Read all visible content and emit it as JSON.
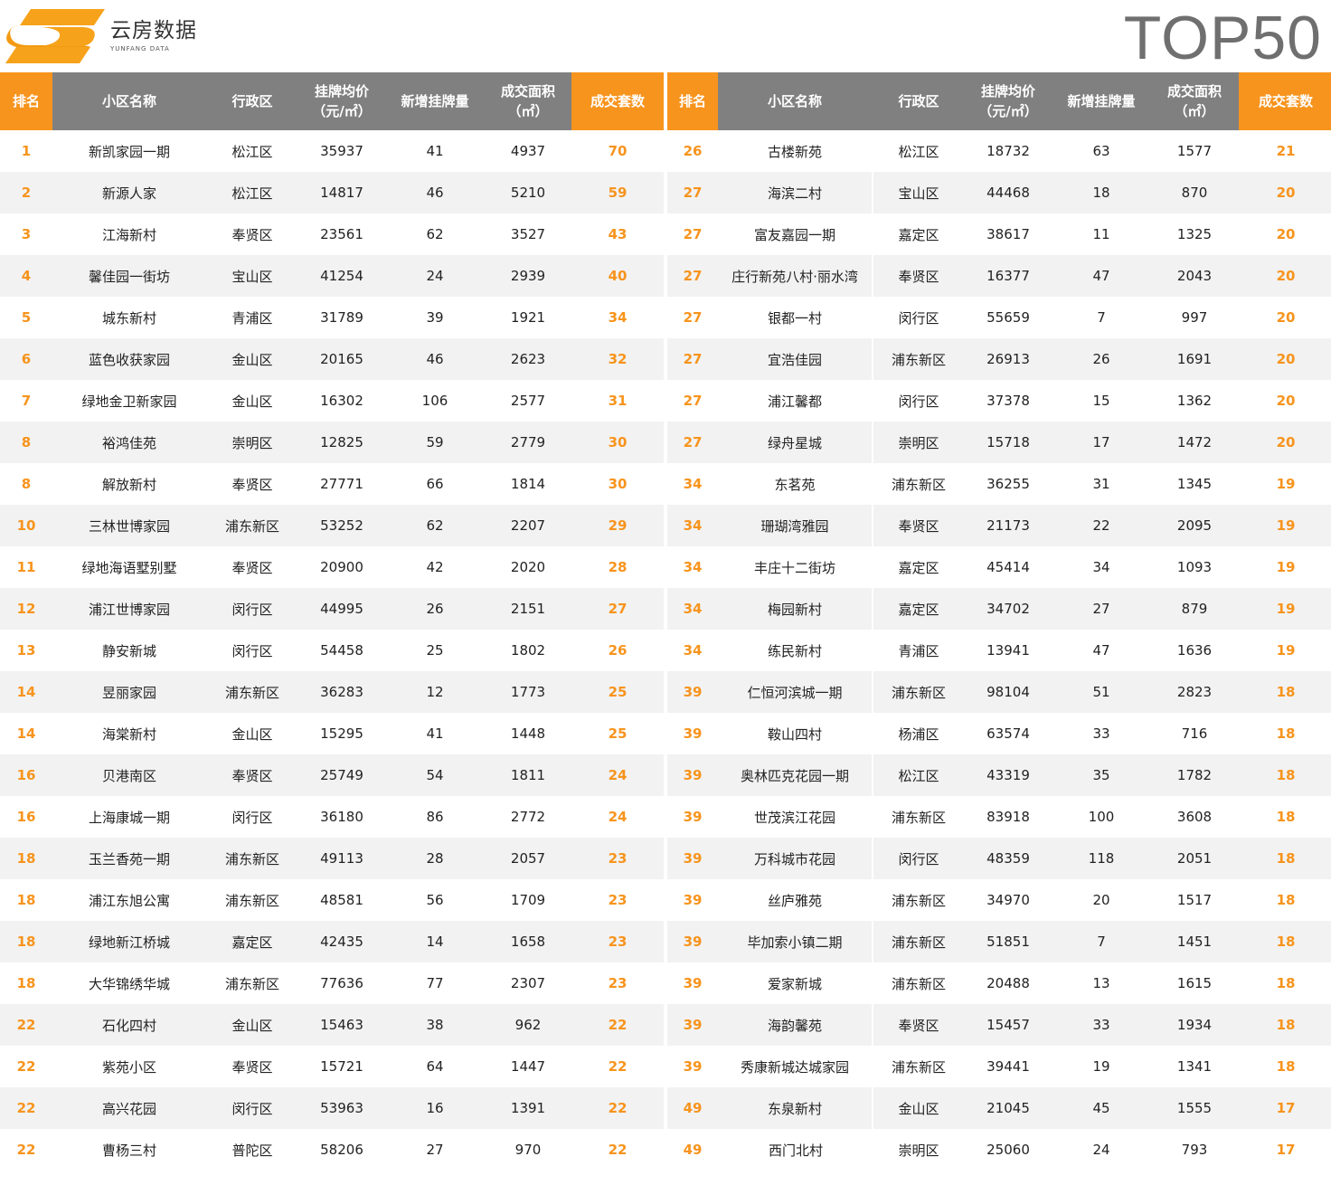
{
  "brand": {
    "name_cn": "云房数据",
    "name_en": "YUNFANG DATA",
    "accent_color": "#f7941d",
    "header_gray": "#808080"
  },
  "title": "TOP50",
  "columns": {
    "rank": "排名",
    "name": "小区名称",
    "district": "行政区",
    "price_line1": "挂牌均价",
    "price_line2": "（元/㎡）",
    "new_listings": "新增挂牌量",
    "area_line1": "成交面积",
    "area_line2": "（㎡）",
    "deals": "成交套数"
  },
  "rows": [
    [
      "1",
      "新凯家园一期",
      "松江区",
      "35937",
      "41",
      "4937",
      "70"
    ],
    [
      "2",
      "新源人家",
      "松江区",
      "14817",
      "46",
      "5210",
      "59"
    ],
    [
      "3",
      "江海新村",
      "奉贤区",
      "23561",
      "62",
      "3527",
      "43"
    ],
    [
      "4",
      "馨佳园一街坊",
      "宝山区",
      "41254",
      "24",
      "2939",
      "40"
    ],
    [
      "5",
      "城东新村",
      "青浦区",
      "31789",
      "39",
      "1921",
      "34"
    ],
    [
      "6",
      "蓝色收获家园",
      "金山区",
      "20165",
      "46",
      "2623",
      "32"
    ],
    [
      "7",
      "绿地金卫新家园",
      "金山区",
      "16302",
      "106",
      "2577",
      "31"
    ],
    [
      "8",
      "裕鸿佳苑",
      "崇明区",
      "12825",
      "59",
      "2779",
      "30"
    ],
    [
      "8",
      "解放新村",
      "奉贤区",
      "27771",
      "66",
      "1814",
      "30"
    ],
    [
      "10",
      "三林世博家园",
      "浦东新区",
      "53252",
      "62",
      "2207",
      "29"
    ],
    [
      "11",
      "绿地海语墅别墅",
      "奉贤区",
      "20900",
      "42",
      "2020",
      "28"
    ],
    [
      "12",
      "浦江世博家园",
      "闵行区",
      "44995",
      "26",
      "2151",
      "27"
    ],
    [
      "13",
      "静安新城",
      "闵行区",
      "54458",
      "25",
      "1802",
      "26"
    ],
    [
      "14",
      "昱丽家园",
      "浦东新区",
      "36283",
      "12",
      "1773",
      "25"
    ],
    [
      "14",
      "海棠新村",
      "金山区",
      "15295",
      "41",
      "1448",
      "25"
    ],
    [
      "16",
      "贝港南区",
      "奉贤区",
      "25749",
      "54",
      "1811",
      "24"
    ],
    [
      "16",
      "上海康城一期",
      "闵行区",
      "36180",
      "86",
      "2772",
      "24"
    ],
    [
      "18",
      "玉兰香苑一期",
      "浦东新区",
      "49113",
      "28",
      "2057",
      "23"
    ],
    [
      "18",
      "浦江东旭公寓",
      "浦东新区",
      "48581",
      "56",
      "1709",
      "23"
    ],
    [
      "18",
      "绿地新江桥城",
      "嘉定区",
      "42435",
      "14",
      "1658",
      "23"
    ],
    [
      "18",
      "大华锦绣华城",
      "浦东新区",
      "77636",
      "77",
      "2307",
      "23"
    ],
    [
      "22",
      "石化四村",
      "金山区",
      "15463",
      "38",
      "962",
      "22"
    ],
    [
      "22",
      "紫苑小区",
      "奉贤区",
      "15721",
      "64",
      "1447",
      "22"
    ],
    [
      "22",
      "高兴花园",
      "闵行区",
      "53963",
      "16",
      "1391",
      "22"
    ],
    [
      "22",
      "曹杨三村",
      "普陀区",
      "58206",
      "27",
      "970",
      "22"
    ],
    [
      "26",
      "古楼新苑",
      "松江区",
      "18732",
      "63",
      "1577",
      "21"
    ],
    [
      "27",
      "海滨二村",
      "宝山区",
      "44468",
      "18",
      "870",
      "20"
    ],
    [
      "27",
      "富友嘉园一期",
      "嘉定区",
      "38617",
      "11",
      "1325",
      "20"
    ],
    [
      "27",
      "庄行新苑八村·丽水湾",
      "奉贤区",
      "16377",
      "47",
      "2043",
      "20"
    ],
    [
      "27",
      "银都一村",
      "闵行区",
      "55659",
      "7",
      "997",
      "20"
    ],
    [
      "27",
      "宜浩佳园",
      "浦东新区",
      "26913",
      "26",
      "1691",
      "20"
    ],
    [
      "27",
      "浦江馨都",
      "闵行区",
      "37378",
      "15",
      "1362",
      "20"
    ],
    [
      "27",
      "绿舟星城",
      "崇明区",
      "15718",
      "17",
      "1472",
      "20"
    ],
    [
      "34",
      "东茗苑",
      "浦东新区",
      "36255",
      "31",
      "1345",
      "19"
    ],
    [
      "34",
      "珊瑚湾雅园",
      "奉贤区",
      "21173",
      "22",
      "2095",
      "19"
    ],
    [
      "34",
      "丰庄十二街坊",
      "嘉定区",
      "45414",
      "34",
      "1093",
      "19"
    ],
    [
      "34",
      "梅园新村",
      "嘉定区",
      "34702",
      "27",
      "879",
      "19"
    ],
    [
      "34",
      "练民新村",
      "青浦区",
      "13941",
      "47",
      "1636",
      "19"
    ],
    [
      "39",
      "仁恒河滨城一期",
      "浦东新区",
      "98104",
      "51",
      "2823",
      "18"
    ],
    [
      "39",
      "鞍山四村",
      "杨浦区",
      "63574",
      "33",
      "716",
      "18"
    ],
    [
      "39",
      "奥林匹克花园一期",
      "松江区",
      "43319",
      "35",
      "1782",
      "18"
    ],
    [
      "39",
      "世茂滨江花园",
      "浦东新区",
      "83918",
      "100",
      "3608",
      "18"
    ],
    [
      "39",
      "万科城市花园",
      "闵行区",
      "48359",
      "118",
      "2051",
      "18"
    ],
    [
      "39",
      "丝庐雅苑",
      "浦东新区",
      "34970",
      "20",
      "1517",
      "18"
    ],
    [
      "39",
      "毕加索小镇二期",
      "浦东新区",
      "51851",
      "7",
      "1451",
      "18"
    ],
    [
      "39",
      "爱家新城",
      "浦东新区",
      "20488",
      "13",
      "1615",
      "18"
    ],
    [
      "39",
      "海韵馨苑",
      "奉贤区",
      "15457",
      "33",
      "1934",
      "18"
    ],
    [
      "39",
      "秀康新城达城家园",
      "浦东新区",
      "39441",
      "19",
      "1341",
      "18"
    ],
    [
      "49",
      "东泉新村",
      "金山区",
      "21045",
      "45",
      "1555",
      "17"
    ],
    [
      "49",
      "西门北村",
      "崇明区",
      "25060",
      "24",
      "793",
      "17"
    ]
  ]
}
